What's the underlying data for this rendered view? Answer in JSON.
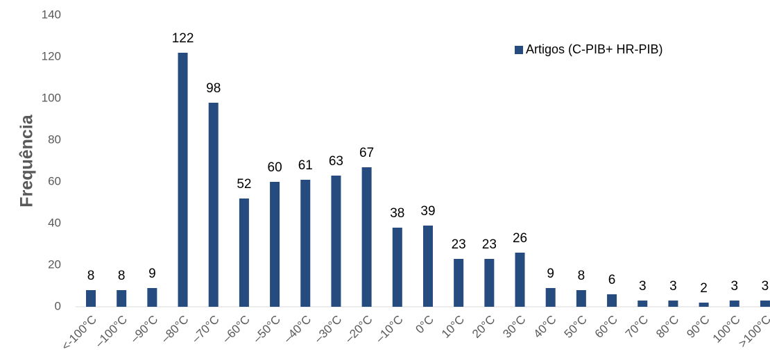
{
  "chart_data": {
    "type": "bar",
    "y_label": "Frequência",
    "categories": [
      "<-100°C",
      "–100°C",
      "–90°C",
      "–80°C",
      "–70°C",
      "–60°C",
      "–50°C",
      "–40°C",
      "–30°C",
      "–20°C",
      "–10°C",
      "0°C",
      "10°C",
      "20°C",
      "30°C",
      "40°C",
      "50°C",
      "60°C",
      "70°C",
      "80°C",
      "90°C",
      "100°C",
      ">100°C"
    ],
    "series": [
      {
        "name": "Artigos (C-PIB+ HR-PIB)",
        "color": "#264b7e",
        "values": [
          8,
          8,
          9,
          122,
          98,
          52,
          60,
          61,
          63,
          67,
          38,
          39,
          23,
          23,
          26,
          9,
          8,
          6,
          3,
          3,
          2,
          3,
          3
        ]
      }
    ],
    "ylim": [
      0,
      140
    ],
    "yticks": [
      0,
      20,
      40,
      60,
      80,
      100,
      120,
      140
    ],
    "legend": "top-right",
    "grid": false
  }
}
